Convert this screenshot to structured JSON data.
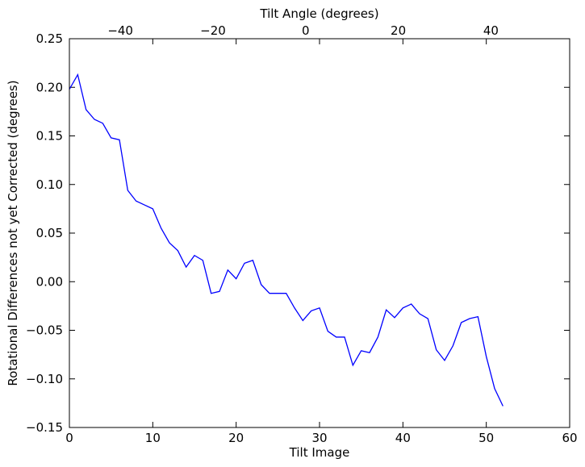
{
  "chart_data": {
    "type": "line",
    "xlabel": "Tilt Image",
    "ylabel": "Rotational Differences not yet Corrected (degrees)",
    "top_xlabel": "Tilt Angle (degrees)",
    "xlim": [
      0,
      60
    ],
    "ylim": [
      -0.15,
      0.25
    ],
    "top_xlim": [
      -51,
      57
    ],
    "xticks": [
      "0",
      "10",
      "20",
      "30",
      "40",
      "50",
      "60"
    ],
    "xtick_values": [
      0,
      10,
      20,
      30,
      40,
      50,
      60
    ],
    "yticks": [
      "0.25",
      "0.20",
      "0.15",
      "0.10",
      "0.05",
      "0.00",
      "−0.05",
      "−0.10",
      "−0.15"
    ],
    "ytick_values": [
      0.25,
      0.2,
      0.15,
      0.1,
      0.05,
      0.0,
      -0.05,
      -0.1,
      -0.15
    ],
    "top_xticks": [
      "−40",
      "−20",
      "0",
      "20",
      "40"
    ],
    "top_xtick_values": [
      -40,
      -20,
      0,
      20,
      40
    ],
    "grid": false,
    "line_color": "#0000ff",
    "series": [
      {
        "x": [
          0,
          1,
          2,
          3,
          4,
          5,
          6,
          7,
          8,
          9,
          10,
          11,
          12,
          13,
          14,
          15,
          16,
          17,
          18,
          19,
          20,
          21,
          22,
          23,
          24,
          25,
          26,
          27,
          28,
          29,
          30,
          31,
          32,
          33,
          34,
          35,
          36,
          37,
          38,
          39,
          40,
          41,
          42,
          43,
          44,
          45,
          46,
          47,
          48,
          49,
          50,
          51,
          52
        ],
        "y": [
          0.198,
          0.213,
          0.177,
          0.167,
          0.163,
          0.148,
          0.146,
          0.094,
          0.083,
          0.079,
          0.075,
          0.055,
          0.04,
          0.032,
          0.015,
          0.027,
          0.022,
          -0.012,
          -0.01,
          0.012,
          0.003,
          0.019,
          0.022,
          -0.003,
          -0.012,
          -0.012,
          -0.012,
          -0.027,
          -0.04,
          -0.03,
          -0.027,
          -0.051,
          -0.057,
          -0.057,
          -0.086,
          -0.071,
          -0.073,
          -0.057,
          -0.029,
          -0.037,
          -0.027,
          -0.023,
          -0.033,
          -0.038,
          -0.07,
          -0.081,
          -0.066,
          -0.042,
          -0.038,
          -0.036,
          -0.077,
          -0.11,
          -0.128
        ]
      }
    ]
  }
}
